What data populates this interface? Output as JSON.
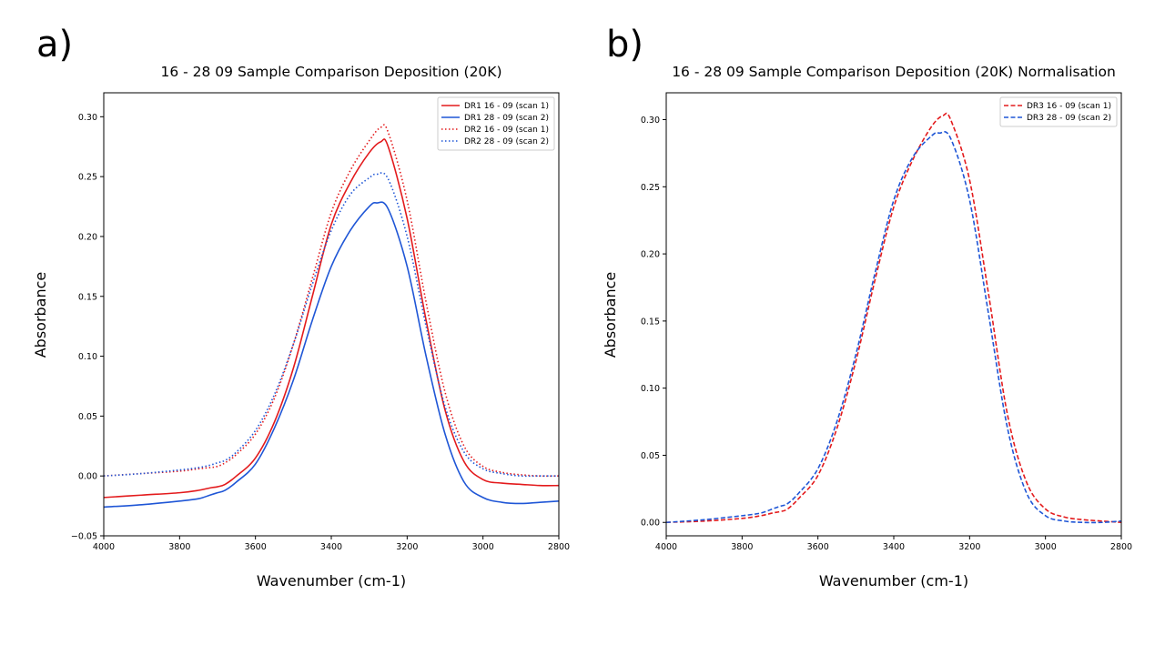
{
  "figure": {
    "panels": [
      "a)",
      "b)"
    ]
  },
  "chart_data": [
    {
      "type": "line",
      "panel_label": "a)",
      "title": "16 - 28 09 Sample Comparison Deposition (20K)",
      "xlabel": "Wavenumber (cm-1)",
      "ylabel": "Absorbance",
      "xlim": [
        4000,
        2800
      ],
      "ylim": [
        -0.05,
        0.32
      ],
      "x_inverted": true,
      "xticks": [
        4000,
        3800,
        3600,
        3400,
        3200,
        3000,
        2800
      ],
      "yticks": [
        -0.05,
        0.0,
        0.05,
        0.1,
        0.15,
        0.2,
        0.25,
        0.3
      ],
      "ytick_labels": [
        "−0.05",
        "0.00",
        "0.05",
        "0.10",
        "0.15",
        "0.20",
        "0.25",
        "0.30"
      ],
      "legend_position": "top-right",
      "grid": false,
      "series": [
        {
          "name": "DR1 16 - 09 (scan 1)",
          "color": "#e31a1c",
          "style": "solid",
          "x": [
            4000,
            3900,
            3800,
            3750,
            3720,
            3700,
            3680,
            3650,
            3600,
            3550,
            3500,
            3450,
            3400,
            3350,
            3300,
            3270,
            3250,
            3200,
            3150,
            3100,
            3050,
            3000,
            2950,
            2900,
            2850,
            2800
          ],
          "y": [
            -0.018,
            -0.016,
            -0.014,
            -0.012,
            -0.01,
            -0.009,
            -0.007,
            0.0,
            0.015,
            0.045,
            0.09,
            0.15,
            0.21,
            0.245,
            0.27,
            0.279,
            0.275,
            0.215,
            0.13,
            0.055,
            0.012,
            -0.003,
            -0.006,
            -0.007,
            -0.008,
            -0.008
          ]
        },
        {
          "name": "DR1 28 - 09 (scan 2)",
          "color": "#1f56d6",
          "style": "solid",
          "x": [
            4000,
            3900,
            3800,
            3750,
            3720,
            3700,
            3680,
            3650,
            3600,
            3550,
            3500,
            3450,
            3400,
            3350,
            3300,
            3280,
            3250,
            3200,
            3150,
            3100,
            3050,
            3000,
            2950,
            2900,
            2850,
            2800
          ],
          "y": [
            -0.026,
            -0.024,
            -0.021,
            -0.019,
            -0.016,
            -0.014,
            -0.012,
            -0.005,
            0.01,
            0.04,
            0.08,
            0.13,
            0.175,
            0.205,
            0.225,
            0.228,
            0.223,
            0.175,
            0.1,
            0.035,
            -0.005,
            -0.018,
            -0.022,
            -0.023,
            -0.022,
            -0.021
          ]
        },
        {
          "name": "DR2 16 - 09 (scan 1)",
          "color": "#e31a1c",
          "style": "dotted",
          "x": [
            4000,
            3900,
            3800,
            3750,
            3720,
            3700,
            3680,
            3650,
            3600,
            3550,
            3500,
            3450,
            3400,
            3350,
            3300,
            3270,
            3250,
            3200,
            3150,
            3100,
            3050,
            3000,
            2950,
            2900,
            2850,
            2800
          ],
          "y": [
            0.0,
            0.002,
            0.004,
            0.006,
            0.007,
            0.008,
            0.011,
            0.018,
            0.035,
            0.065,
            0.11,
            0.165,
            0.22,
            0.255,
            0.28,
            0.291,
            0.287,
            0.23,
            0.145,
            0.07,
            0.025,
            0.008,
            0.003,
            0.001,
            0.0,
            0.0
          ]
        },
        {
          "name": "DR2 28 - 09 (scan 2)",
          "color": "#1f56d6",
          "style": "dotted",
          "x": [
            4000,
            3900,
            3800,
            3750,
            3720,
            3700,
            3680,
            3650,
            3600,
            3550,
            3500,
            3450,
            3400,
            3350,
            3300,
            3280,
            3250,
            3200,
            3150,
            3100,
            3050,
            3000,
            2950,
            2900,
            2850,
            2800
          ],
          "y": [
            0.0,
            0.002,
            0.005,
            0.007,
            0.009,
            0.011,
            0.013,
            0.02,
            0.038,
            0.068,
            0.11,
            0.16,
            0.205,
            0.235,
            0.249,
            0.252,
            0.248,
            0.2,
            0.125,
            0.058,
            0.02,
            0.006,
            0.002,
            0.0,
            0.0,
            0.0
          ]
        }
      ]
    },
    {
      "type": "line",
      "panel_label": "b)",
      "title": "16 - 28 09 Sample Comparison Deposition (20K) Normalisation",
      "xlabel": "Wavenumber (cm-1)",
      "ylabel": "Absorbance",
      "xlim": [
        4000,
        2800
      ],
      "ylim": [
        -0.01,
        0.32
      ],
      "x_inverted": true,
      "xticks": [
        4000,
        3800,
        3600,
        3400,
        3200,
        3000,
        2800
      ],
      "yticks": [
        0.0,
        0.05,
        0.1,
        0.15,
        0.2,
        0.25,
        0.3
      ],
      "ytick_labels": [
        "0.00",
        "0.05",
        "0.10",
        "0.15",
        "0.20",
        "0.25",
        "0.30"
      ],
      "legend_position": "top-right",
      "grid": false,
      "series": [
        {
          "name": "DR3 16 - 09 (scan 1)",
          "color": "#e31a1c",
          "style": "dashed",
          "x": [
            4000,
            3900,
            3800,
            3750,
            3720,
            3700,
            3680,
            3650,
            3600,
            3550,
            3500,
            3450,
            3400,
            3350,
            3300,
            3270,
            3250,
            3200,
            3150,
            3100,
            3050,
            3000,
            2950,
            2900,
            2850,
            2800
          ],
          "y": [
            0.0,
            0.001,
            0.003,
            0.005,
            0.007,
            0.008,
            0.01,
            0.018,
            0.035,
            0.07,
            0.12,
            0.18,
            0.235,
            0.27,
            0.295,
            0.303,
            0.3,
            0.255,
            0.17,
            0.08,
            0.03,
            0.01,
            0.004,
            0.002,
            0.001,
            0.0
          ]
        },
        {
          "name": "DR3 28 - 09 (scan 2)",
          "color": "#1f56d6",
          "style": "dashed",
          "x": [
            4000,
            3900,
            3800,
            3750,
            3720,
            3700,
            3680,
            3650,
            3600,
            3550,
            3500,
            3450,
            3400,
            3350,
            3300,
            3280,
            3250,
            3200,
            3150,
            3100,
            3050,
            3000,
            2950,
            2900,
            2850,
            2800
          ],
          "y": [
            0.0,
            0.002,
            0.005,
            0.007,
            0.01,
            0.012,
            0.014,
            0.022,
            0.04,
            0.075,
            0.125,
            0.185,
            0.24,
            0.272,
            0.288,
            0.29,
            0.286,
            0.24,
            0.155,
            0.07,
            0.022,
            0.005,
            0.001,
            0.0,
            0.0,
            0.001
          ]
        }
      ]
    }
  ]
}
